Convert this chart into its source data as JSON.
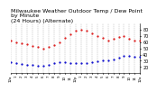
{
  "title": "Milwaukee Weather Outdoor Temp / Dew Point\nby Minute\n(24 Hours) (Alternate)",
  "title_fontsize": 4.5,
  "background_color": "#ffffff",
  "grid_color": "#aaaaaa",
  "temp_color": "#dd1111",
  "dew_color": "#0000cc",
  "xlim": [
    0,
    1440
  ],
  "ylim": [
    10,
    90
  ],
  "yticks": [
    20,
    30,
    40,
    50,
    60,
    70,
    80
  ],
  "ylabel_fontsize": 3.5,
  "xlabel_fontsize": 2.8,
  "xtick_labels": [
    "12a",
    "1",
    "2",
    "3",
    "4",
    "5",
    "6",
    "7",
    "8",
    "9",
    "10",
    "11",
    "12p",
    "1",
    "2",
    "3",
    "4",
    "5",
    "6",
    "7",
    "8",
    "9",
    "10",
    "11",
    "12a"
  ],
  "vgrid_positions": [
    0,
    60,
    120,
    180,
    240,
    300,
    360,
    420,
    480,
    540,
    600,
    660,
    720,
    780,
    840,
    900,
    960,
    1020,
    1080,
    1140,
    1200,
    1260,
    1320,
    1380,
    1440
  ],
  "temp_x": [
    0,
    60,
    120,
    180,
    240,
    300,
    360,
    420,
    480,
    540,
    600,
    660,
    720,
    780,
    840,
    900,
    960,
    1020,
    1080,
    1140,
    1200,
    1260,
    1320,
    1380,
    1440
  ],
  "temp_y": [
    62,
    60,
    58,
    56,
    54,
    52,
    50,
    52,
    55,
    60,
    67,
    73,
    78,
    80,
    78,
    74,
    70,
    66,
    63,
    65,
    68,
    70,
    65,
    63,
    62
  ],
  "dew_x": [
    0,
    60,
    120,
    180,
    240,
    300,
    360,
    420,
    480,
    540,
    600,
    660,
    720,
    780,
    840,
    900,
    960,
    1020,
    1080,
    1140,
    1200,
    1260,
    1320,
    1380,
    1440
  ],
  "dew_y": [
    28,
    26,
    25,
    24,
    23,
    22,
    22,
    24,
    26,
    28,
    28,
    27,
    26,
    26,
    27,
    28,
    29,
    30,
    30,
    32,
    35,
    38,
    38,
    37,
    36
  ],
  "marker_size": 1.2,
  "line_style": "dotted"
}
